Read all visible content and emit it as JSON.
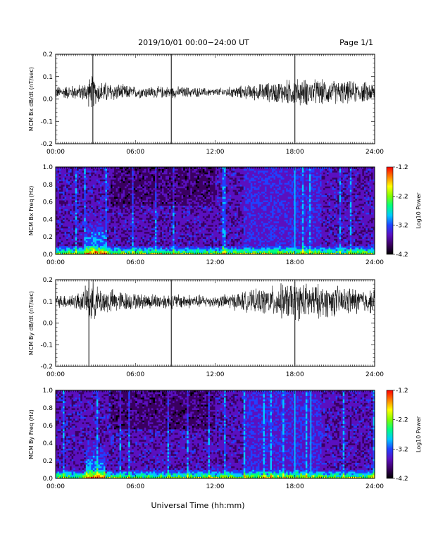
{
  "header": {
    "title": "2019/10/01   00:00−24:00 UT",
    "page": "Page 1/1"
  },
  "xaxis": {
    "label": "Universal Time (hh:mm)",
    "ticks": [
      "00:00",
      "06:00",
      "12:00",
      "18:00",
      "24:00"
    ],
    "range_hours": [
      0,
      24
    ]
  },
  "colorbar": {
    "label": "Log10 Power",
    "ticks": [
      "-1.2",
      "-2.2",
      "-3.2",
      "-4.2"
    ],
    "range": [
      -4.2,
      -1.2
    ],
    "colors": [
      "#000000",
      "#3a0060",
      "#5a10c0",
      "#2040ff",
      "#00c8ff",
      "#00ff80",
      "#80ff00",
      "#ffff00",
      "#ff8000",
      "#ff0000"
    ]
  },
  "chart_data": [
    {
      "type": "line",
      "title": "",
      "ylabel": "MCM Bx dB/dt (nT/sec)",
      "ylim": [
        -0.2,
        0.2
      ],
      "yticks": [
        "0.2",
        "0.1",
        "0.0",
        "-0.1",
        "-0.2"
      ],
      "baseline": 0.03,
      "spikes_hours": [
        2.8,
        8.7,
        18.0
      ],
      "series": [
        {
          "hours": [
            0,
            2,
            2.8,
            3,
            6,
            9,
            12,
            15,
            17,
            18,
            21,
            24
          ],
          "amplitude": [
            0.03,
            0.04,
            0.09,
            0.06,
            0.03,
            0.03,
            0.02,
            0.04,
            0.06,
            0.07,
            0.06,
            0.05
          ]
        }
      ]
    },
    {
      "type": "heatmap",
      "title": "",
      "ylabel": "MCM Bx Freq (Hz)",
      "ylim": [
        0.0,
        1.0
      ],
      "yticks": [
        "1.0",
        "0.8",
        "0.6",
        "0.4",
        "0.2",
        "0.0"
      ],
      "zlim": [
        -4.2,
        -1.2
      ],
      "bright_lines_hours": [
        18.0
      ]
    },
    {
      "type": "line",
      "title": "",
      "ylabel": "MCM By dB/dt (nT/sec)",
      "ylim": [
        -0.2,
        0.2
      ],
      "yticks": [
        "0.2",
        "0.1",
        "0.0",
        "-0.1",
        "-0.2"
      ],
      "baseline": 0.1,
      "spikes_hours": [
        2.5,
        8.7,
        18.0
      ],
      "series": [
        {
          "hours": [
            0,
            2,
            2.8,
            3,
            6,
            9,
            12,
            15,
            17,
            18,
            21,
            24
          ],
          "amplitude": [
            0.03,
            0.05,
            0.13,
            0.08,
            0.04,
            0.04,
            0.03,
            0.06,
            0.09,
            0.1,
            0.08,
            0.06
          ]
        }
      ]
    },
    {
      "type": "heatmap",
      "title": "",
      "ylabel": "MCM By Freq (Hz)",
      "ylim": [
        0.0,
        1.0
      ],
      "yticks": [
        "1.0",
        "0.8",
        "0.6",
        "0.4",
        "0.2",
        "0.0"
      ],
      "zlim": [
        -4.2,
        -1.2
      ],
      "bright_lines_hours": [
        18.0,
        19.2
      ]
    }
  ]
}
